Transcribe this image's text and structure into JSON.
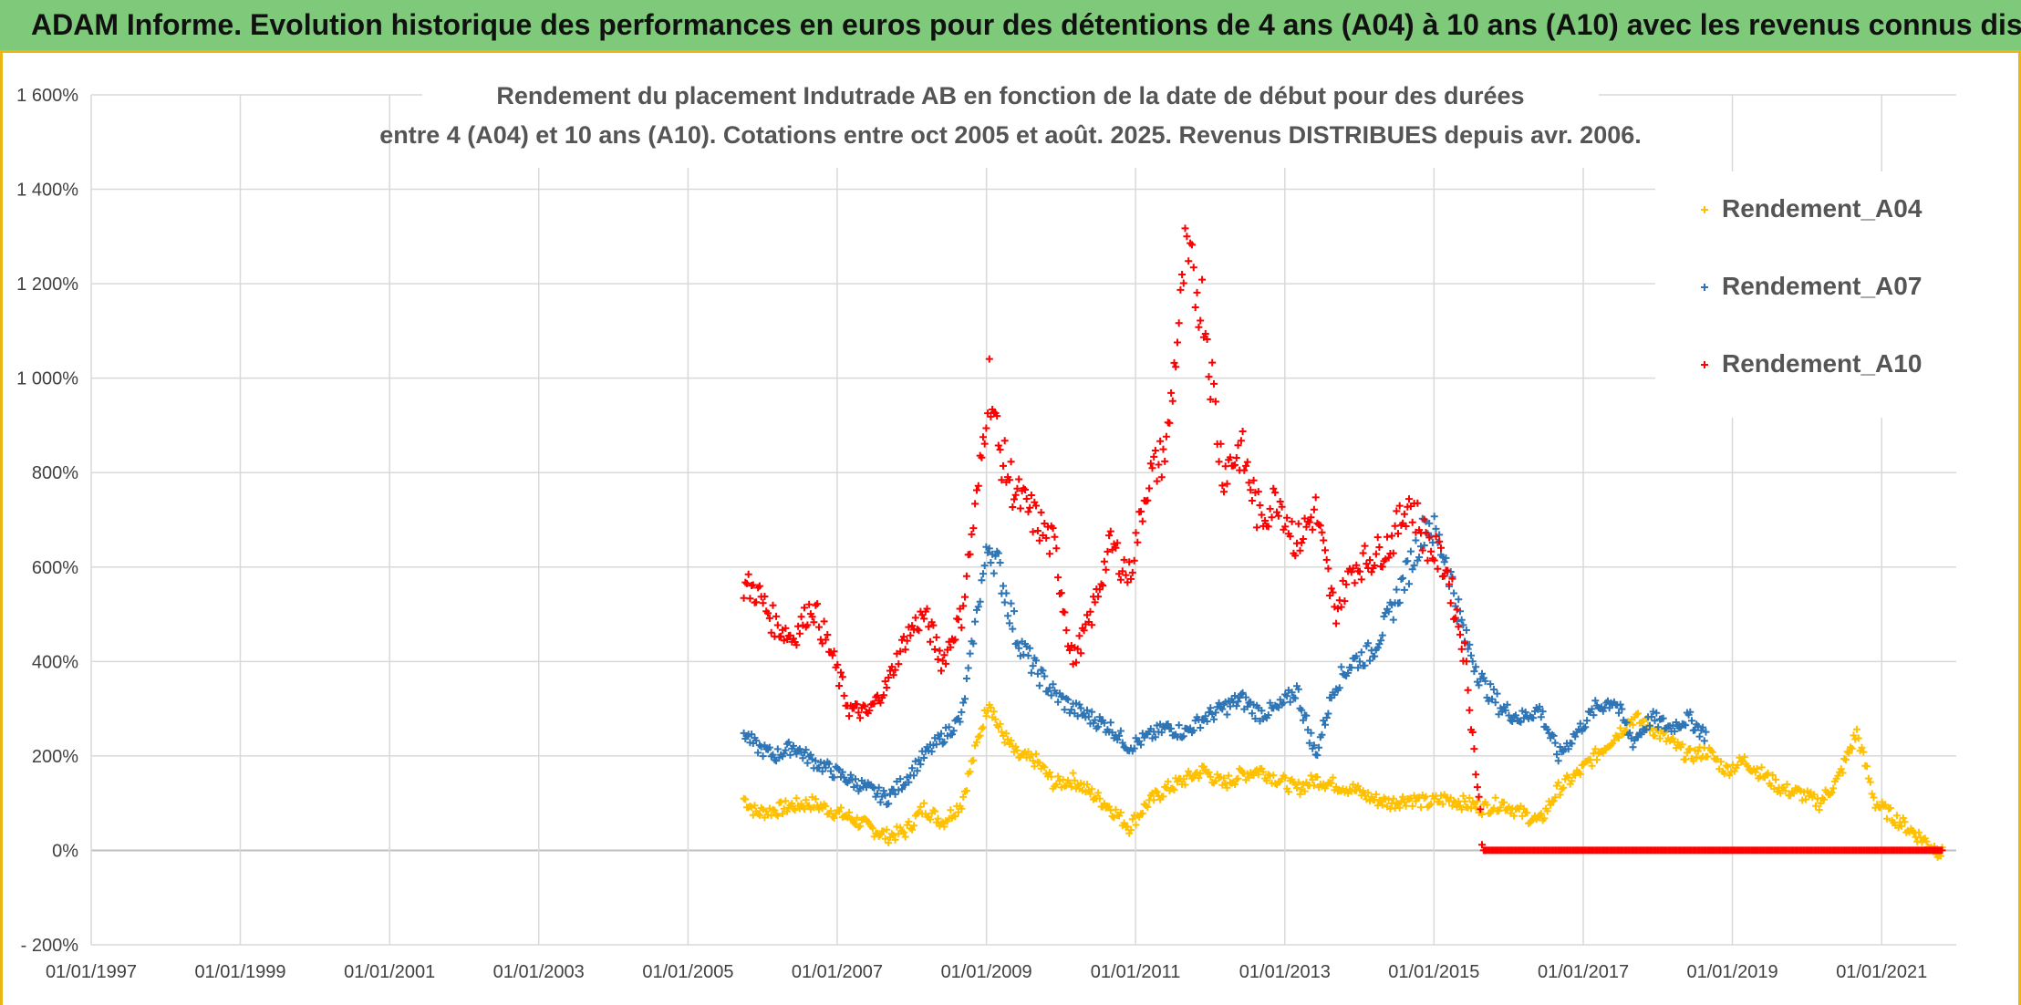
{
  "header": {
    "title": "ADAM Informe. Evolution historique des performances en euros pour des détentions de 4 ans (A04) à 10 ans (A10) avec les revenus connus distribués"
  },
  "chart_data": {
    "type": "scatter",
    "title_line1": "Rendement du placement Indutrade AB en fonction de la date de début pour des durées",
    "title_line2": "entre 4 (A04) et 10 ans (A10). Cotations entre oct 2005 et août. 2025. Revenus DISTRIBUES depuis avr. 2006.",
    "xlabel": "",
    "ylabel": "",
    "x_range": [
      "1997-01-01",
      "2022-01-01"
    ],
    "ylim": [
      -200,
      1600
    ],
    "y_ticks": [
      -200,
      0,
      200,
      400,
      600,
      800,
      1000,
      1200,
      1400,
      1600
    ],
    "y_tick_labels": [
      "- 200%",
      "0%",
      "200%",
      "400%",
      "600%",
      "800%",
      "1 000%",
      "1 200%",
      "1 400%",
      "1 600%"
    ],
    "x_ticks": [
      "1997-01-01",
      "1999-01-01",
      "2001-01-01",
      "2003-01-01",
      "2005-01-01",
      "2007-01-01",
      "2009-01-01",
      "2011-01-01",
      "2013-01-01",
      "2015-01-01",
      "2017-01-01",
      "2019-01-01",
      "2021-01-01"
    ],
    "x_tick_labels": [
      "01/01/1997",
      "01/01/1999",
      "01/01/2001",
      "01/01/2003",
      "01/01/2005",
      "01/01/2007",
      "01/01/2009",
      "01/01/2011",
      "01/01/2013",
      "01/01/2015",
      "01/01/2017",
      "01/01/2019",
      "01/01/2021"
    ],
    "grid": true,
    "legend_position": "top-right",
    "marker": "+",
    "series": [
      {
        "name": "Rendement_A04",
        "color": "#ffc000",
        "points": [
          [
            "2005-10-01",
            110
          ],
          [
            "2005-12-01",
            80
          ],
          [
            "2006-03-01",
            85
          ],
          [
            "2006-06-01",
            95
          ],
          [
            "2006-09-01",
            100
          ],
          [
            "2006-12-01",
            85
          ],
          [
            "2007-03-01",
            70
          ],
          [
            "2007-06-01",
            50
          ],
          [
            "2007-09-01",
            30
          ],
          [
            "2007-12-01",
            40
          ],
          [
            "2008-03-01",
            90
          ],
          [
            "2008-06-01",
            60
          ],
          [
            "2008-09-01",
            100
          ],
          [
            "2008-12-01",
            250
          ],
          [
            "2009-01-15",
            320
          ],
          [
            "2009-03-01",
            260
          ],
          [
            "2009-06-01",
            200
          ],
          [
            "2009-09-01",
            190
          ],
          [
            "2009-12-01",
            140
          ],
          [
            "2010-03-01",
            150
          ],
          [
            "2010-06-01",
            120
          ],
          [
            "2010-09-01",
            90
          ],
          [
            "2010-12-01",
            50
          ],
          [
            "2011-03-01",
            100
          ],
          [
            "2011-06-01",
            130
          ],
          [
            "2011-09-01",
            150
          ],
          [
            "2011-12-01",
            170
          ],
          [
            "2012-03-01",
            140
          ],
          [
            "2012-06-01",
            160
          ],
          [
            "2012-09-01",
            170
          ],
          [
            "2012-12-01",
            150
          ],
          [
            "2013-03-01",
            130
          ],
          [
            "2013-06-01",
            150
          ],
          [
            "2013-09-01",
            140
          ],
          [
            "2013-12-01",
            130
          ],
          [
            "2014-03-01",
            110
          ],
          [
            "2014-06-01",
            100
          ],
          [
            "2014-09-01",
            110
          ],
          [
            "2014-12-01",
            100
          ],
          [
            "2015-03-01",
            110
          ],
          [
            "2015-06-01",
            100
          ],
          [
            "2015-09-01",
            90
          ],
          [
            "2015-12-01",
            100
          ],
          [
            "2016-03-01",
            80
          ],
          [
            "2016-06-01",
            60
          ],
          [
            "2016-09-01",
            130
          ],
          [
            "2016-12-01",
            160
          ],
          [
            "2017-03-01",
            200
          ],
          [
            "2017-06-01",
            240
          ],
          [
            "2017-09-01",
            280
          ],
          [
            "2017-12-01",
            260
          ],
          [
            "2018-03-01",
            230
          ],
          [
            "2018-06-01",
            200
          ],
          [
            "2018-09-01",
            210
          ],
          [
            "2018-12-01",
            170
          ],
          [
            "2019-03-01",
            190
          ],
          [
            "2019-06-01",
            160
          ],
          [
            "2019-09-01",
            130
          ],
          [
            "2019-12-01",
            120
          ],
          [
            "2020-03-01",
            100
          ],
          [
            "2020-06-01",
            150
          ],
          [
            "2020-09-01",
            250
          ],
          [
            "2020-12-01",
            100
          ],
          [
            "2021-03-01",
            70
          ],
          [
            "2021-06-01",
            40
          ],
          [
            "2021-09-01",
            10
          ],
          [
            "2021-11-01",
            -10
          ]
        ]
      },
      {
        "name": "Rendement_A07",
        "color": "#2e75b6",
        "points": [
          [
            "2005-10-01",
            250
          ],
          [
            "2005-12-01",
            220
          ],
          [
            "2006-03-01",
            200
          ],
          [
            "2006-06-01",
            220
          ],
          [
            "2006-09-01",
            190
          ],
          [
            "2006-12-01",
            170
          ],
          [
            "2007-03-01",
            150
          ],
          [
            "2007-06-01",
            130
          ],
          [
            "2007-09-01",
            110
          ],
          [
            "2007-12-01",
            150
          ],
          [
            "2008-03-01",
            200
          ],
          [
            "2008-06-01",
            240
          ],
          [
            "2008-09-01",
            280
          ],
          [
            "2008-12-01",
            550
          ],
          [
            "2009-01-15",
            650
          ],
          [
            "2009-03-01",
            600
          ],
          [
            "2009-06-01",
            450
          ],
          [
            "2009-09-01",
            380
          ],
          [
            "2009-12-01",
            330
          ],
          [
            "2010-03-01",
            300
          ],
          [
            "2010-06-01",
            280
          ],
          [
            "2010-09-01",
            260
          ],
          [
            "2010-12-01",
            220
          ],
          [
            "2011-03-01",
            240
          ],
          [
            "2011-06-01",
            260
          ],
          [
            "2011-09-01",
            250
          ],
          [
            "2011-12-01",
            280
          ],
          [
            "2012-03-01",
            300
          ],
          [
            "2012-06-01",
            320
          ],
          [
            "2012-09-01",
            290
          ],
          [
            "2012-12-01",
            300
          ],
          [
            "2013-03-01",
            340
          ],
          [
            "2013-06-01",
            200
          ],
          [
            "2013-09-01",
            350
          ],
          [
            "2013-12-01",
            400
          ],
          [
            "2014-03-01",
            420
          ],
          [
            "2014-06-01",
            500
          ],
          [
            "2014-09-01",
            600
          ],
          [
            "2014-12-01",
            700
          ],
          [
            "2015-03-01",
            620
          ],
          [
            "2015-06-01",
            450
          ],
          [
            "2015-09-01",
            350
          ],
          [
            "2015-12-01",
            300
          ],
          [
            "2016-03-01",
            280
          ],
          [
            "2016-06-01",
            300
          ],
          [
            "2016-09-01",
            200
          ],
          [
            "2016-12-01",
            250
          ],
          [
            "2017-03-01",
            300
          ],
          [
            "2017-06-01",
            320
          ],
          [
            "2017-09-01",
            230
          ],
          [
            "2017-12-01",
            280
          ],
          [
            "2018-03-01",
            260
          ],
          [
            "2018-06-01",
            280
          ],
          [
            "2018-09-01",
            240
          ]
        ]
      },
      {
        "name": "Rendement_A10",
        "color": "#ff0000",
        "points": [
          [
            "2005-10-01",
            560
          ],
          [
            "2005-12-01",
            550
          ],
          [
            "2006-03-01",
            480
          ],
          [
            "2006-06-01",
            450
          ],
          [
            "2006-09-01",
            520
          ],
          [
            "2006-12-01",
            420
          ],
          [
            "2007-03-01",
            300
          ],
          [
            "2007-06-01",
            290
          ],
          [
            "2007-09-01",
            350
          ],
          [
            "2007-12-01",
            450
          ],
          [
            "2008-03-01",
            500
          ],
          [
            "2008-06-01",
            400
          ],
          [
            "2008-09-01",
            500
          ],
          [
            "2008-12-01",
            800
          ],
          [
            "2009-01-15",
            1000
          ],
          [
            "2009-03-01",
            850
          ],
          [
            "2009-06-01",
            750
          ],
          [
            "2009-09-01",
            700
          ],
          [
            "2009-12-01",
            640
          ],
          [
            "2010-03-01",
            400
          ],
          [
            "2010-06-01",
            500
          ],
          [
            "2010-09-01",
            650
          ],
          [
            "2010-12-01",
            580
          ],
          [
            "2011-03-01",
            780
          ],
          [
            "2011-06-01",
            850
          ],
          [
            "2011-09-01",
            1250
          ],
          [
            "2011-12-01",
            1150
          ],
          [
            "2012-03-01",
            800
          ],
          [
            "2012-06-01",
            850
          ],
          [
            "2012-09-01",
            700
          ],
          [
            "2012-12-01",
            750
          ],
          [
            "2013-03-01",
            650
          ],
          [
            "2013-06-01",
            720
          ],
          [
            "2013-09-01",
            500
          ],
          [
            "2013-12-01",
            600
          ],
          [
            "2014-03-01",
            620
          ],
          [
            "2014-06-01",
            650
          ],
          [
            "2014-09-01",
            740
          ],
          [
            "2014-12-01",
            650
          ],
          [
            "2015-03-01",
            600
          ],
          [
            "2015-06-01",
            420
          ],
          [
            "2015-09-01",
            0
          ],
          [
            "2016-09-01",
            0
          ],
          [
            "2017-09-01",
            0
          ],
          [
            "2018-09-01",
            0
          ],
          [
            "2019-09-01",
            0
          ],
          [
            "2020-09-01",
            0
          ],
          [
            "2021-11-01",
            0
          ]
        ]
      }
    ]
  }
}
